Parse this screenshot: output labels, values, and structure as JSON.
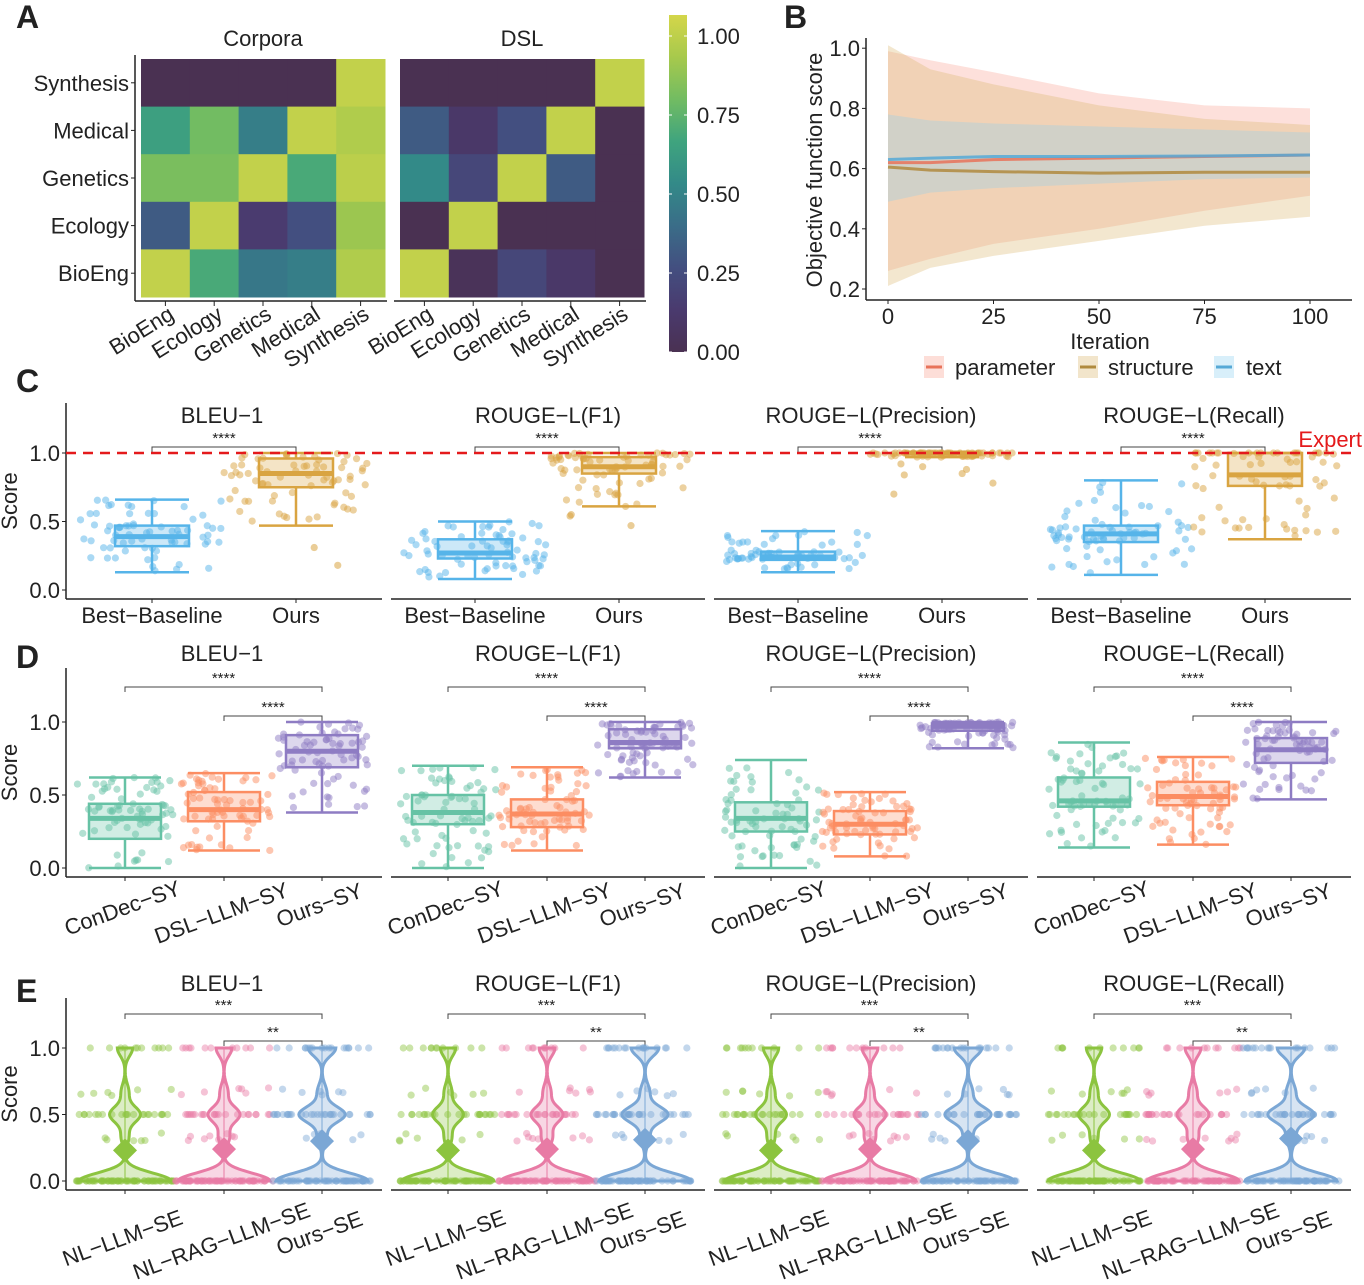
{
  "panel_labels": [
    "A",
    "B",
    "C",
    "D",
    "E"
  ],
  "chart_data": [
    {
      "type": "heatmap",
      "rows": [
        "Synthesis",
        "Medical",
        "Genetics",
        "Ecology",
        "BioEng"
      ],
      "cols": [
        "BioEng",
        "Ecology",
        "Genetics",
        "Medical",
        "Synthesis"
      ],
      "facets": [
        {
          "title": "Corpora",
          "values": [
            [
              0,
              0,
              0,
              0,
              0.95
            ],
            [
              0.6,
              0.75,
              0.45,
              0.95,
              0.9
            ],
            [
              0.77,
              0.77,
              0.95,
              0.65,
              0.93
            ],
            [
              0.3,
              0.95,
              0.13,
              0.25,
              0.85
            ],
            [
              0.95,
              0.65,
              0.42,
              0.45,
              0.9
            ]
          ]
        },
        {
          "title": "DSL",
          "values": [
            [
              0,
              0,
              0,
              0,
              0.95
            ],
            [
              0.3,
              0.1,
              0.25,
              0.95,
              0
            ],
            [
              0.5,
              0.2,
              0.95,
              0.3,
              0
            ],
            [
              0,
              0.95,
              0,
              0,
              0
            ],
            [
              0.95,
              0.03,
              0.2,
              0.1,
              0
            ]
          ]
        }
      ],
      "colorbar": {
        "colormap": "viridis",
        "range": [
          0,
          1
        ],
        "ticks": [
          "0.00",
          "0.25",
          "0.50",
          "0.75",
          "1.00"
        ]
      }
    },
    {
      "type": "line",
      "xlabel": "Iteration",
      "ylabel": "Objective function score",
      "x_ticks": [
        "0",
        "25",
        "50",
        "75",
        "100"
      ],
      "y_ticks": [
        "0.2",
        "0.4",
        "0.6",
        "0.8",
        "1.0"
      ],
      "xlim": [
        0,
        100
      ],
      "ylim": [
        0.2,
        1.0
      ],
      "legend": "bottom",
      "x": [
        0,
        10,
        25,
        50,
        75,
        100
      ],
      "series": [
        {
          "name": "parameter",
          "color": "#E8735A",
          "band_color": "#F8A090",
          "mean": [
            0.62,
            0.62,
            0.63,
            0.635,
            0.64,
            0.645
          ],
          "upper": [
            0.99,
            0.96,
            0.92,
            0.85,
            0.81,
            0.8
          ],
          "lower": [
            0.26,
            0.3,
            0.35,
            0.4,
            0.46,
            0.51
          ]
        },
        {
          "name": "structure",
          "color": "#B08A3E",
          "band_color": "#D9B46A",
          "mean": [
            0.605,
            0.595,
            0.59,
            0.585,
            0.588,
            0.588
          ],
          "upper": [
            1.01,
            0.93,
            0.88,
            0.81,
            0.765,
            0.745
          ],
          "lower": [
            0.21,
            0.27,
            0.31,
            0.36,
            0.41,
            0.44
          ]
        },
        {
          "name": "text",
          "color": "#56A9D6",
          "band_color": "#8FD0F0",
          "mean": [
            0.63,
            0.635,
            0.64,
            0.64,
            0.642,
            0.645
          ],
          "upper": [
            0.78,
            0.76,
            0.75,
            0.74,
            0.73,
            0.72
          ],
          "lower": [
            0.49,
            0.52,
            0.535,
            0.55,
            0.565,
            0.57
          ]
        }
      ]
    },
    {
      "type": "box",
      "ylabel": "Score",
      "y_ticks": [
        "0.0",
        "0.5",
        "1.0"
      ],
      "categories": [
        "Best−Baseline",
        "Ours"
      ],
      "colors": [
        "#56B4E9",
        "#D9A441"
      ],
      "reference_line": {
        "value": 1.0,
        "label": "Expert",
        "color": "#E41A1C"
      },
      "facets": [
        {
          "title": "BLEU−1",
          "significance": [
            {
              "from": 0,
              "to": 1,
              "label": "****"
            }
          ],
          "boxes": [
            {
              "min": 0.13,
              "q1": 0.32,
              "median": 0.39,
              "q3": 0.47,
              "max": 0.66
            },
            {
              "min": 0.47,
              "q1": 0.75,
              "median": 0.85,
              "q3": 0.96,
              "max": 1.0,
              "outliers": [
                0.31,
                0.18
              ]
            }
          ]
        },
        {
          "title": "ROUGE−L(F1)",
          "significance": [
            {
              "from": 0,
              "to": 1,
              "label": "****"
            }
          ],
          "boxes": [
            {
              "min": 0.08,
              "q1": 0.23,
              "median": 0.27,
              "q3": 0.37,
              "max": 0.5
            },
            {
              "min": 0.61,
              "q1": 0.85,
              "median": 0.9,
              "q3": 0.97,
              "max": 1.0,
              "outliers": [
                0.55,
                0.54,
                0.47
              ]
            }
          ]
        },
        {
          "title": "ROUGE−L(Precision)",
          "significance": [
            {
              "from": 0,
              "to": 1,
              "label": "****"
            }
          ],
          "boxes": [
            {
              "min": 0.13,
              "q1": 0.22,
              "median": 0.24,
              "q3": 0.28,
              "max": 0.43
            },
            {
              "min": 0.97,
              "q1": 0.99,
              "median": 1.0,
              "q3": 1.0,
              "max": 1.0,
              "outliers": [
                0.7,
                0.78,
                0.84,
                0.85,
                0.88,
                0.9,
                0.92
              ]
            }
          ]
        },
        {
          "title": "ROUGE−L(Recall)",
          "significance": [
            {
              "from": 0,
              "to": 1,
              "label": "****"
            }
          ],
          "boxes": [
            {
              "min": 0.11,
              "q1": 0.35,
              "median": 0.41,
              "q3": 0.47,
              "max": 0.8
            },
            {
              "min": 0.37,
              "q1": 0.76,
              "median": 0.84,
              "q3": 1.0,
              "max": 1.0
            }
          ]
        }
      ]
    },
    {
      "type": "box",
      "ylabel": "Score",
      "y_ticks": [
        "0.0",
        "0.5",
        "1.0"
      ],
      "categories": [
        "ConDec−SY",
        "DSL−LLM−SY",
        "Ours−SY"
      ],
      "colors": [
        "#66C2A5",
        "#FC8D62",
        "#8E7CC3"
      ],
      "facets": [
        {
          "title": "BLEU−1",
          "significance": [
            {
              "from": 0,
              "to": 2,
              "label": "****"
            },
            {
              "from": 1,
              "to": 2,
              "label": "****"
            }
          ],
          "boxes": [
            {
              "min": 0,
              "q1": 0.2,
              "median": 0.34,
              "q3": 0.44,
              "max": 0.62
            },
            {
              "min": 0.12,
              "q1": 0.32,
              "median": 0.4,
              "q3": 0.52,
              "max": 0.65
            },
            {
              "min": 0.38,
              "q1": 0.69,
              "median": 0.8,
              "q3": 0.91,
              "max": 1.0
            }
          ]
        },
        {
          "title": "ROUGE−L(F1)",
          "significance": [
            {
              "from": 0,
              "to": 2,
              "label": "****"
            },
            {
              "from": 1,
              "to": 2,
              "label": "****"
            }
          ],
          "boxes": [
            {
              "min": 0,
              "q1": 0.3,
              "median": 0.38,
              "q3": 0.5,
              "max": 0.7
            },
            {
              "min": 0.12,
              "q1": 0.28,
              "median": 0.37,
              "q3": 0.47,
              "max": 0.69
            },
            {
              "min": 0.62,
              "q1": 0.82,
              "median": 0.86,
              "q3": 0.95,
              "max": 1.0
            }
          ]
        },
        {
          "title": "ROUGE−L(Precision)",
          "significance": [
            {
              "from": 0,
              "to": 2,
              "label": "****"
            },
            {
              "from": 1,
              "to": 2,
              "label": "****"
            }
          ],
          "boxes": [
            {
              "min": 0,
              "q1": 0.25,
              "median": 0.34,
              "q3": 0.45,
              "max": 0.74
            },
            {
              "min": 0.08,
              "q1": 0.23,
              "median": 0.3,
              "q3": 0.39,
              "max": 0.52
            },
            {
              "min": 0.82,
              "q1": 0.94,
              "median": 0.97,
              "q3": 0.99,
              "max": 1.0
            }
          ]
        },
        {
          "title": "ROUGE−L(Recall)",
          "significance": [
            {
              "from": 0,
              "to": 2,
              "label": "****"
            },
            {
              "from": 1,
              "to": 2,
              "label": "****"
            }
          ],
          "boxes": [
            {
              "min": 0.14,
              "q1": 0.42,
              "median": 0.46,
              "q3": 0.62,
              "max": 0.86
            },
            {
              "min": 0.16,
              "q1": 0.43,
              "median": 0.49,
              "q3": 0.59,
              "max": 0.76
            },
            {
              "min": 0.47,
              "q1": 0.72,
              "median": 0.81,
              "q3": 0.89,
              "max": 1.0
            }
          ]
        }
      ]
    },
    {
      "type": "violin",
      "ylabel": "Score",
      "y_ticks": [
        "0.0",
        "0.5",
        "1.0"
      ],
      "categories": [
        "NL−LLM−SE",
        "NL−RAG−LLM−SE",
        "Ours−SE"
      ],
      "colors": [
        "#8CC43F",
        "#E87BA5",
        "#7BA7D5"
      ],
      "facets": [
        {
          "title": "BLEU−1",
          "significance": [
            {
              "from": 0,
              "to": 2,
              "label": "***"
            },
            {
              "from": 1,
              "to": 2,
              "label": "**"
            }
          ],
          "groups": [
            {
              "mean": 0.23,
              "distribution": {
                "0": 0.6,
                "0.33": 0.05,
                "0.5": 0.2,
                "0.67": 0.05,
                "1": 0.1
              }
            },
            {
              "mean": 0.24,
              "distribution": {
                "0": 0.58,
                "0.33": 0.07,
                "0.5": 0.2,
                "0.67": 0.05,
                "1": 0.1
              }
            },
            {
              "mean": 0.3,
              "distribution": {
                "0": 0.5,
                "0.33": 0.05,
                "0.5": 0.25,
                "0.67": 0.05,
                "1": 0.15
              }
            }
          ]
        },
        {
          "title": "ROUGE−L(F1)",
          "significance": [
            {
              "from": 0,
              "to": 2,
              "label": "***"
            },
            {
              "from": 1,
              "to": 2,
              "label": "**"
            }
          ],
          "groups": [
            {
              "mean": 0.23,
              "distribution": {
                "0": 0.6,
                "0.33": 0.05,
                "0.5": 0.2,
                "0.67": 0.05,
                "1": 0.1
              }
            },
            {
              "mean": 0.24,
              "distribution": {
                "0": 0.58,
                "0.33": 0.07,
                "0.5": 0.2,
                "0.67": 0.05,
                "1": 0.1
              }
            },
            {
              "mean": 0.31,
              "distribution": {
                "0": 0.5,
                "0.33": 0.05,
                "0.5": 0.25,
                "0.67": 0.05,
                "1": 0.15
              }
            }
          ]
        },
        {
          "title": "ROUGE−L(Precision)",
          "significance": [
            {
              "from": 0,
              "to": 2,
              "label": "***"
            },
            {
              "from": 1,
              "to": 2,
              "label": "**"
            }
          ],
          "groups": [
            {
              "mean": 0.23,
              "distribution": {
                "0": 0.6,
                "0.33": 0.05,
                "0.5": 0.2,
                "0.67": 0.05,
                "1": 0.1
              }
            },
            {
              "mean": 0.24,
              "distribution": {
                "0": 0.58,
                "0.33": 0.07,
                "0.5": 0.2,
                "0.67": 0.05,
                "1": 0.1
              }
            },
            {
              "mean": 0.3,
              "distribution": {
                "0": 0.5,
                "0.33": 0.05,
                "0.5": 0.25,
                "0.67": 0.05,
                "1": 0.15
              }
            }
          ]
        },
        {
          "title": "ROUGE−L(Recall)",
          "significance": [
            {
              "from": 0,
              "to": 2,
              "label": "***"
            },
            {
              "from": 1,
              "to": 2,
              "label": "**"
            }
          ],
          "groups": [
            {
              "mean": 0.23,
              "distribution": {
                "0": 0.6,
                "0.33": 0.05,
                "0.5": 0.2,
                "0.67": 0.05,
                "1": 0.1
              }
            },
            {
              "mean": 0.24,
              "distribution": {
                "0": 0.58,
                "0.33": 0.07,
                "0.5": 0.2,
                "0.67": 0.05,
                "1": 0.1
              }
            },
            {
              "mean": 0.32,
              "distribution": {
                "0": 0.5,
                "0.33": 0.05,
                "0.5": 0.25,
                "0.67": 0.05,
                "1": 0.15
              }
            }
          ]
        }
      ]
    }
  ]
}
